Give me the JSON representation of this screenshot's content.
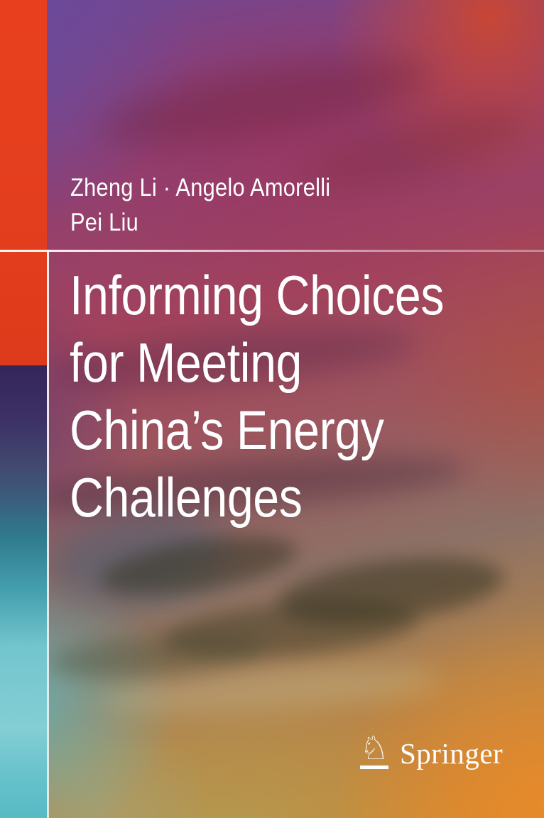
{
  "book_cover": {
    "authors": {
      "line1": "Zheng Li · Angelo Amorelli",
      "line2": "Pei Liu"
    },
    "title": {
      "full": "Informing Choices for Meeting China’s Energy Challenges",
      "lines": [
        "Informing Choices",
        "for Meeting",
        "China’s Energy",
        "Challenges"
      ]
    },
    "publisher": {
      "name": "Springer",
      "logo_icon": "springer-horse-knight-icon",
      "logo_glyph": "♘"
    },
    "colors": {
      "accent_red": "#e23e1d",
      "text_white": "#ffffff",
      "bg_purple": "#6f4794",
      "bg_magenta": "#9e3a64",
      "bg_brick_red": "#b04a3c",
      "bg_orange": "#d2882f",
      "strip_indigo": "#35255a",
      "strip_teal": "#5fc0ca"
    }
  }
}
